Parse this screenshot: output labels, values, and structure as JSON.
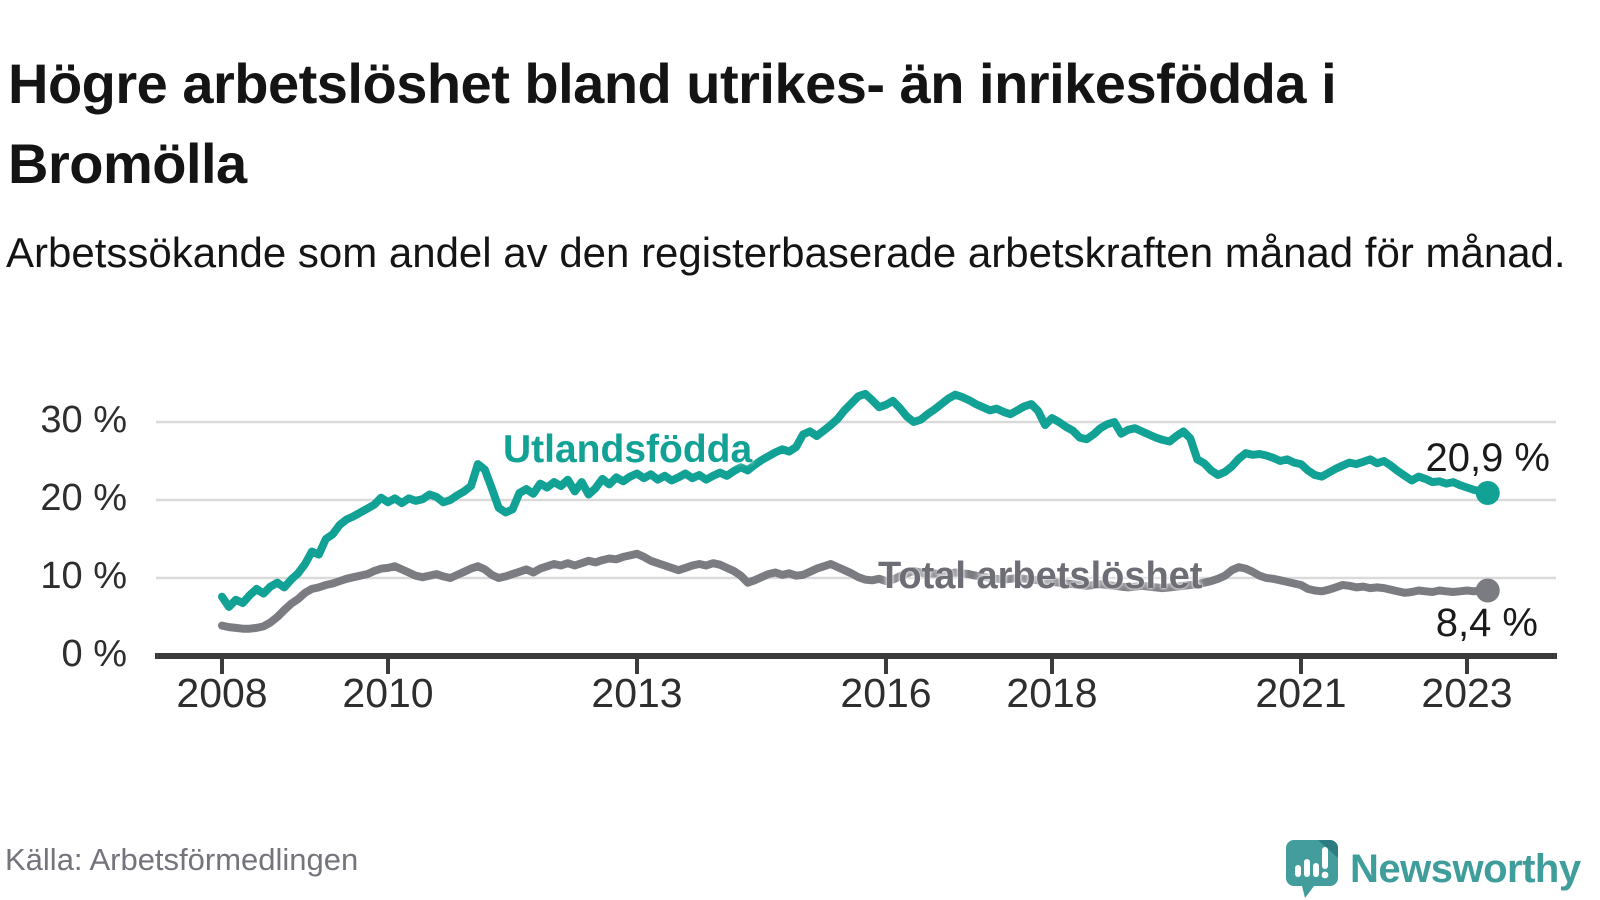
{
  "title": "Högre arbetslöshet bland utrikes- än inrikesfödda i Bromölla",
  "subtitle": "Arbetssökande som andel av den registerbaserade arbetskraften månad för månad.",
  "source": "Källa: Arbetsförmedlingen",
  "logo": {
    "text": "Newsworthy",
    "color": "#3f9e9b"
  },
  "colors": {
    "foreign_line": "#12a195",
    "total_line": "#7b7b82",
    "grid": "#dadada",
    "axis": "#3b3b3b"
  },
  "chart_data": {
    "type": "line",
    "title": "Högre arbetslöshet bland utrikes- än inrikesfödda i Bromölla",
    "ylabel": "",
    "xlabel": "",
    "ylim": [
      0,
      35
    ],
    "grid": "horizontal",
    "legend_position": "inline",
    "x_start_year": 2008,
    "x_start_month": 1,
    "frequency": "monthly",
    "x_ticks": [
      {
        "year": 2008,
        "label": "2008"
      },
      {
        "year": 2010,
        "label": "2010"
      },
      {
        "year": 2013,
        "label": "2013"
      },
      {
        "year": 2016,
        "label": "2016"
      },
      {
        "year": 2018,
        "label": "2018"
      },
      {
        "year": 2021,
        "label": "2021"
      },
      {
        "year": 2023,
        "label": "2023"
      }
    ],
    "y_ticks": [
      {
        "value": 0,
        "label": "0 %"
      },
      {
        "value": 10,
        "label": "10 %"
      },
      {
        "value": 20,
        "label": "20 %"
      },
      {
        "value": 30,
        "label": "30 %"
      }
    ],
    "series": [
      {
        "name": "Utlandsfödda",
        "color": "#12a195",
        "end_label": "20,9 %",
        "end_value": 20.9,
        "values": [
          7.6,
          6.3,
          7.2,
          6.8,
          7.8,
          8.6,
          8.0,
          8.9,
          9.4,
          8.8,
          9.8,
          10.6,
          11.8,
          13.4,
          13.0,
          15.0,
          15.6,
          16.8,
          17.5,
          17.9,
          18.4,
          18.9,
          19.4,
          20.3,
          19.7,
          20.2,
          19.6,
          20.2,
          19.9,
          20.1,
          20.7,
          20.4,
          19.7,
          20.0,
          20.6,
          21.1,
          21.8,
          24.6,
          23.9,
          21.5,
          19.0,
          18.4,
          18.8,
          20.9,
          21.4,
          20.8,
          22.1,
          21.6,
          22.3,
          21.8,
          22.6,
          21.1,
          22.3,
          20.7,
          21.5,
          22.7,
          22.0,
          22.9,
          22.4,
          23.0,
          23.4,
          22.8,
          23.3,
          22.6,
          23.1,
          22.5,
          22.9,
          23.4,
          22.8,
          23.2,
          22.6,
          23.1,
          23.5,
          23.1,
          23.7,
          24.2,
          23.8,
          24.5,
          25.1,
          25.6,
          26.1,
          26.5,
          26.2,
          26.8,
          28.4,
          28.8,
          28.2,
          28.9,
          29.6,
          30.4,
          31.5,
          32.4,
          33.3,
          33.6,
          32.8,
          31.9,
          32.2,
          32.7,
          31.8,
          30.7,
          30.0,
          30.3,
          31.0,
          31.6,
          32.3,
          33.0,
          33.5,
          33.2,
          32.8,
          32.3,
          31.9,
          31.5,
          31.7,
          31.3,
          31.0,
          31.5,
          32.0,
          32.3,
          31.4,
          29.6,
          30.5,
          30.0,
          29.4,
          28.9,
          28.0,
          27.8,
          28.4,
          29.2,
          29.7,
          30.0,
          28.5,
          29.0,
          29.2,
          28.8,
          28.4,
          28.0,
          27.7,
          27.5,
          28.2,
          28.8,
          27.9,
          25.2,
          24.7,
          23.8,
          23.2,
          23.6,
          24.3,
          25.3,
          26.0,
          25.8,
          25.9,
          25.7,
          25.4,
          25.0,
          25.2,
          24.8,
          24.6,
          23.8,
          23.2,
          23.0,
          23.5,
          24.0,
          24.4,
          24.8,
          24.6,
          24.9,
          25.2,
          24.7,
          25.0,
          24.4,
          23.7,
          23.1,
          22.5,
          23.0,
          22.7,
          22.3,
          22.4,
          22.1,
          22.3,
          21.9,
          21.6,
          21.3,
          21.1,
          20.9
        ]
      },
      {
        "name": "Total arbetslöshet",
        "color": "#7b7b82",
        "end_label": "8,4 %",
        "end_value": 8.4,
        "values": [
          3.9,
          3.7,
          3.6,
          3.5,
          3.5,
          3.6,
          3.8,
          4.3,
          5.0,
          5.9,
          6.7,
          7.3,
          8.1,
          8.6,
          8.8,
          9.1,
          9.3,
          9.6,
          9.9,
          10.1,
          10.3,
          10.5,
          10.9,
          11.2,
          11.3,
          11.5,
          11.1,
          10.7,
          10.3,
          10.1,
          10.3,
          10.5,
          10.2,
          10.0,
          10.4,
          10.8,
          11.2,
          11.5,
          11.1,
          10.4,
          10.0,
          10.2,
          10.5,
          10.8,
          11.1,
          10.7,
          11.2,
          11.5,
          11.8,
          11.6,
          11.9,
          11.6,
          11.9,
          12.2,
          12.0,
          12.3,
          12.5,
          12.4,
          12.7,
          12.9,
          13.1,
          12.7,
          12.2,
          11.9,
          11.6,
          11.3,
          11.0,
          11.3,
          11.6,
          11.8,
          11.6,
          11.9,
          11.7,
          11.3,
          10.9,
          10.3,
          9.4,
          9.7,
          10.1,
          10.5,
          10.7,
          10.4,
          10.6,
          10.3,
          10.4,
          10.8,
          11.2,
          11.5,
          11.8,
          11.4,
          11.0,
          10.6,
          10.1,
          9.8,
          9.7,
          9.9,
          9.6,
          9.8,
          10.2,
          10.6,
          10.9,
          10.7,
          10.5,
          10.6,
          10.4,
          10.5,
          10.7,
          10.6,
          10.5,
          10.3,
          10.2,
          10.0,
          9.9,
          9.8,
          9.9,
          10.0,
          9.9,
          9.8,
          9.7,
          9.6,
          9.5,
          9.4,
          9.3,
          9.2,
          9.1,
          9.0,
          9.1,
          9.2,
          9.1,
          9.0,
          8.9,
          8.8,
          8.9,
          9.0,
          8.9,
          8.8,
          8.7,
          8.8,
          8.9,
          9.0,
          9.1,
          9.2,
          9.4,
          9.6,
          9.9,
          10.3,
          11.0,
          11.4,
          11.2,
          10.8,
          10.3,
          10.0,
          9.9,
          9.7,
          9.5,
          9.3,
          9.1,
          8.6,
          8.4,
          8.3,
          8.5,
          8.8,
          9.1,
          9.0,
          8.8,
          8.9,
          8.7,
          8.8,
          8.7,
          8.5,
          8.3,
          8.1,
          8.2,
          8.4,
          8.3,
          8.2,
          8.4,
          8.3,
          8.2,
          8.3,
          8.4,
          8.3,
          8.4,
          8.4
        ]
      }
    ]
  }
}
